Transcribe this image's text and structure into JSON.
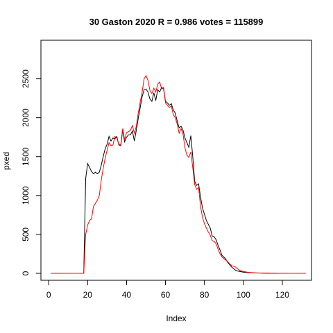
{
  "chart_data": {
    "type": "line",
    "title": "30 Gaston 2020 R = 0.986 votes = 115899",
    "xlabel": "Index",
    "ylabel": "pxed",
    "xlim": [
      1,
      130
    ],
    "ylim": [
      0,
      2550
    ],
    "x_ticks": [
      0,
      20,
      40,
      60,
      80,
      100,
      120
    ],
    "y_ticks": [
      0,
      500,
      1000,
      1500,
      2000,
      2500
    ],
    "grid": false,
    "series": [
      {
        "color": "#000000",
        "values": [
          0,
          0,
          0,
          0,
          0,
          0,
          0,
          0,
          0,
          0,
          0,
          0,
          0,
          0,
          0,
          0,
          0,
          0,
          1220,
          1410,
          1360,
          1310,
          1280,
          1300,
          1280,
          1300,
          1390,
          1500,
          1600,
          1660,
          1760,
          1700,
          1740,
          1730,
          1760,
          1650,
          1640,
          1840,
          1690,
          1750,
          1780,
          1780,
          1830,
          1700,
          1840,
          1990,
          2130,
          2270,
          2360,
          2370,
          2330,
          2240,
          2210,
          2320,
          2220,
          2360,
          2330,
          2390,
          2370,
          2210,
          2190,
          2160,
          2180,
          2100,
          2060,
          1960,
          1870,
          1890,
          1840,
          1740,
          1680,
          1620,
          1770,
          1500,
          1180,
          1130,
          1150,
          980,
          840,
          760,
          680,
          630,
          580,
          480,
          470,
          430,
          360,
          300,
          230,
          210,
          180,
          140,
          110,
          80,
          60,
          40,
          30,
          25,
          20,
          15,
          12,
          10,
          8,
          7,
          6,
          5,
          4,
          3,
          3,
          2,
          2,
          1,
          1,
          1,
          1,
          0,
          0,
          0,
          0,
          0,
          0,
          0,
          0,
          0,
          0,
          0,
          0,
          0,
          0,
          0,
          0,
          0
        ]
      },
      {
        "color": "#ff0000",
        "values": [
          0,
          0,
          0,
          0,
          0,
          0,
          0,
          0,
          0,
          0,
          0,
          0,
          0,
          0,
          0,
          0,
          0,
          0,
          500,
          620,
          680,
          700,
          860,
          900,
          940,
          1000,
          1200,
          1350,
          1480,
          1580,
          1680,
          1640,
          1650,
          1760,
          1740,
          1660,
          1650,
          1860,
          1720,
          1810,
          1820,
          1840,
          1900,
          1800,
          1890,
          2060,
          2200,
          2330,
          2500,
          2540,
          2480,
          2350,
          2310,
          2380,
          2330,
          2430,
          2460,
          2370,
          2390,
          2190,
          2160,
          2130,
          2150,
          2040,
          2000,
          1920,
          1800,
          1860,
          1790,
          1610,
          1520,
          1490,
          1560,
          1360,
          1140,
          1080,
          1100,
          860,
          720,
          640,
          580,
          530,
          490,
          420,
          410,
          380,
          310,
          250,
          210,
          190,
          170,
          150,
          120,
          100,
          90,
          80,
          60,
          40,
          30,
          25,
          20,
          15,
          12,
          10,
          8,
          7,
          6,
          5,
          4,
          3,
          3,
          2,
          2,
          1,
          1,
          1,
          1,
          0,
          0,
          0,
          0,
          0,
          0,
          0,
          0,
          0,
          0,
          0,
          0,
          0,
          0,
          0
        ]
      }
    ]
  }
}
